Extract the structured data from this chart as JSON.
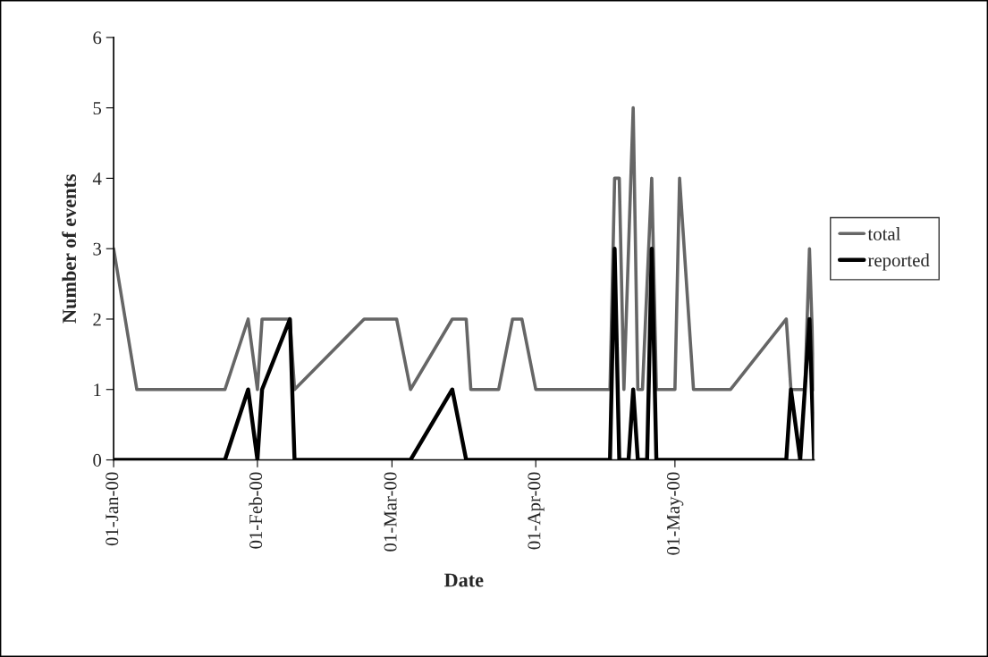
{
  "chart_data": {
    "type": "line",
    "xlabel": "Date",
    "ylabel": "Number of events",
    "xlim": [
      "2000-01-01",
      "2000-05-31"
    ],
    "xticks": [
      {
        "value": "2000-01-01",
        "label": "01-Jan-00"
      },
      {
        "value": "2000-02-01",
        "label": "01-Feb-00"
      },
      {
        "value": "2000-03-01",
        "label": "01-Mar-00"
      },
      {
        "value": "2000-04-01",
        "label": "01-Apr-00"
      },
      {
        "value": "2000-05-01",
        "label": "01-May-00"
      }
    ],
    "ylim": [
      0,
      6
    ],
    "yticks": [
      0,
      1,
      2,
      3,
      4,
      5,
      6
    ],
    "grid": false,
    "legend": "right",
    "line_style": "solid",
    "marker": "none",
    "series": [
      {
        "name": "total",
        "color": "#666666",
        "x": [
          "2000-01-01",
          "2000-01-06",
          "2000-01-25",
          "2000-01-30",
          "2000-02-01",
          "2000-02-02",
          "2000-02-08",
          "2000-02-09",
          "2000-02-24",
          "2000-03-02",
          "2000-03-05",
          "2000-03-14",
          "2000-03-17",
          "2000-03-18",
          "2000-03-24",
          "2000-03-27",
          "2000-03-29",
          "2000-04-01",
          "2000-04-17",
          "2000-04-18",
          "2000-04-19",
          "2000-04-20",
          "2000-04-22",
          "2000-04-23",
          "2000-04-24",
          "2000-04-26",
          "2000-04-27",
          "2000-05-01",
          "2000-05-02",
          "2000-05-05",
          "2000-05-13",
          "2000-05-25",
          "2000-05-26",
          "2000-05-29",
          "2000-05-30",
          "2000-05-31"
        ],
        "values": [
          3,
          1,
          1,
          2,
          1,
          2,
          2,
          1,
          2,
          2,
          1,
          2,
          2,
          1,
          1,
          2,
          2,
          1,
          1,
          4,
          4,
          1,
          5,
          1,
          1,
          4,
          1,
          1,
          4,
          1,
          1,
          2,
          1,
          1,
          3,
          1
        ]
      },
      {
        "name": "reported",
        "color": "#000000",
        "x": [
          "2000-01-01",
          "2000-01-25",
          "2000-01-30",
          "2000-02-01",
          "2000-02-02",
          "2000-02-08",
          "2000-02-09",
          "2000-03-05",
          "2000-03-14",
          "2000-03-17",
          "2000-04-17",
          "2000-04-18",
          "2000-04-19",
          "2000-04-21",
          "2000-04-22",
          "2000-04-23",
          "2000-04-25",
          "2000-04-26",
          "2000-04-27",
          "2000-05-25",
          "2000-05-26",
          "2000-05-28",
          "2000-05-30",
          "2000-05-31"
        ],
        "values": [
          0,
          0,
          1,
          0,
          1,
          2,
          0,
          0,
          1,
          0,
          0,
          3,
          0,
          0,
          1,
          0,
          0,
          3,
          0,
          0,
          1,
          0,
          2,
          0
        ]
      }
    ]
  }
}
